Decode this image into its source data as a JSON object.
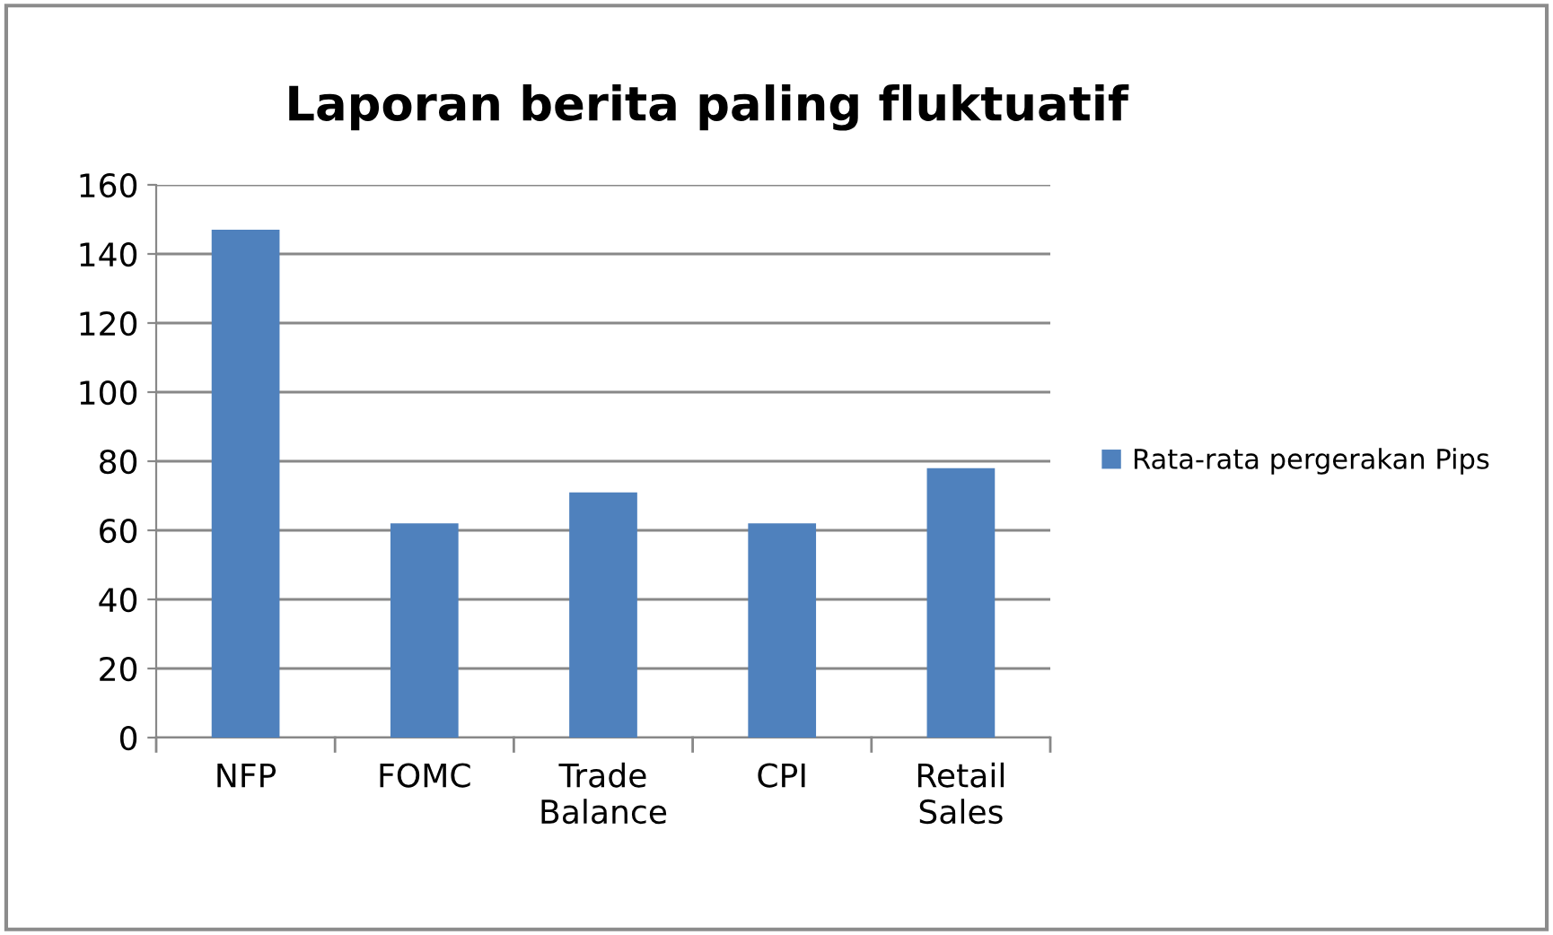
{
  "chart_data": {
    "type": "bar",
    "title": "Laporan berita paling fluktuatif",
    "categories": [
      "NFP",
      "FOMC",
      "Trade Balance",
      "CPI",
      "Retail Sales"
    ],
    "series": [
      {
        "name": "Rata-rata pergerakan Pips",
        "color": "#4f81bd",
        "values": [
          147,
          62,
          71,
          62,
          78
        ]
      }
    ],
    "ylim": [
      0,
      160
    ],
    "yticks": [
      0,
      20,
      40,
      60,
      80,
      100,
      120,
      140,
      160
    ],
    "grid": "y",
    "legend": "right"
  }
}
